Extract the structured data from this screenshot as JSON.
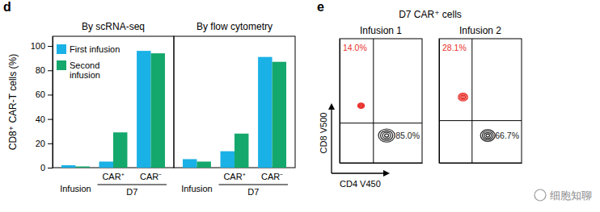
{
  "figure": {
    "panels": [
      {
        "label": "d"
      },
      {
        "label": "e",
        "title": "D7 CAR⁺ cells"
      }
    ],
    "watermark": "细胞知聊"
  },
  "chart_data": [
    {
      "type": "bar",
      "title": "By scRNA-seq",
      "y_label": "CD8⁺ CAR-T cells (%)",
      "categories": [
        "Infusion",
        "CAR⁺",
        "CAR⁻"
      ],
      "category_groups": [
        null,
        "D7",
        "D7"
      ],
      "series": [
        {
          "name": "First infusion",
          "color": "#1ab1e6",
          "values": [
            2,
            5,
            96
          ]
        },
        {
          "name": "Second infusion",
          "color": "#15a86c",
          "values": [
            1,
            29,
            94
          ]
        }
      ],
      "ylim": [
        0,
        108
      ],
      "yticks": [
        0,
        20,
        40,
        60,
        80,
        100
      ],
      "legend": "upper left"
    },
    {
      "type": "bar",
      "title": "By flow cytometry",
      "categories": [
        "Infusion",
        "CAR⁺",
        "CAR⁻"
      ],
      "category_groups": [
        null,
        "D7",
        "D7"
      ],
      "series": [
        {
          "color": "#1ab1e6",
          "values": [
            7,
            13.5,
            91
          ]
        },
        {
          "color": "#15a86c",
          "values": [
            5,
            28,
            87
          ]
        }
      ],
      "ylim": [
        0,
        108
      ],
      "tick_labels": "x"
    },
    {
      "type": "contour",
      "title": "Infusion 1",
      "x_label": "CD4 V450",
      "y_label": "CD8 V500",
      "xlim": [
        0,
        100
      ],
      "ylim": [
        0,
        100
      ],
      "tick_labels": false,
      "gates": {
        "x": 41,
        "y": 32
      },
      "populations": [
        {
          "x": 26,
          "y": 46,
          "value": 14.0,
          "value_label": "14.0%",
          "color": "#e8302a"
        },
        {
          "x": 57,
          "y": 22,
          "value": 85.0,
          "value_label": "85.0%",
          "color": "#222222"
        }
      ]
    },
    {
      "type": "contour",
      "title": "Infusion 2",
      "xlim": [
        0,
        100
      ],
      "ylim": [
        0,
        100
      ],
      "tick_labels": false,
      "gates": {
        "x": 40,
        "y": 34
      },
      "populations": [
        {
          "x": 29,
          "y": 53,
          "value": 28.1,
          "value_label": "28.1%",
          "color": "#e8302a"
        },
        {
          "x": 59,
          "y": 22,
          "value": 66.7,
          "value_label": "66.7%",
          "color": "#222222"
        }
      ]
    }
  ]
}
